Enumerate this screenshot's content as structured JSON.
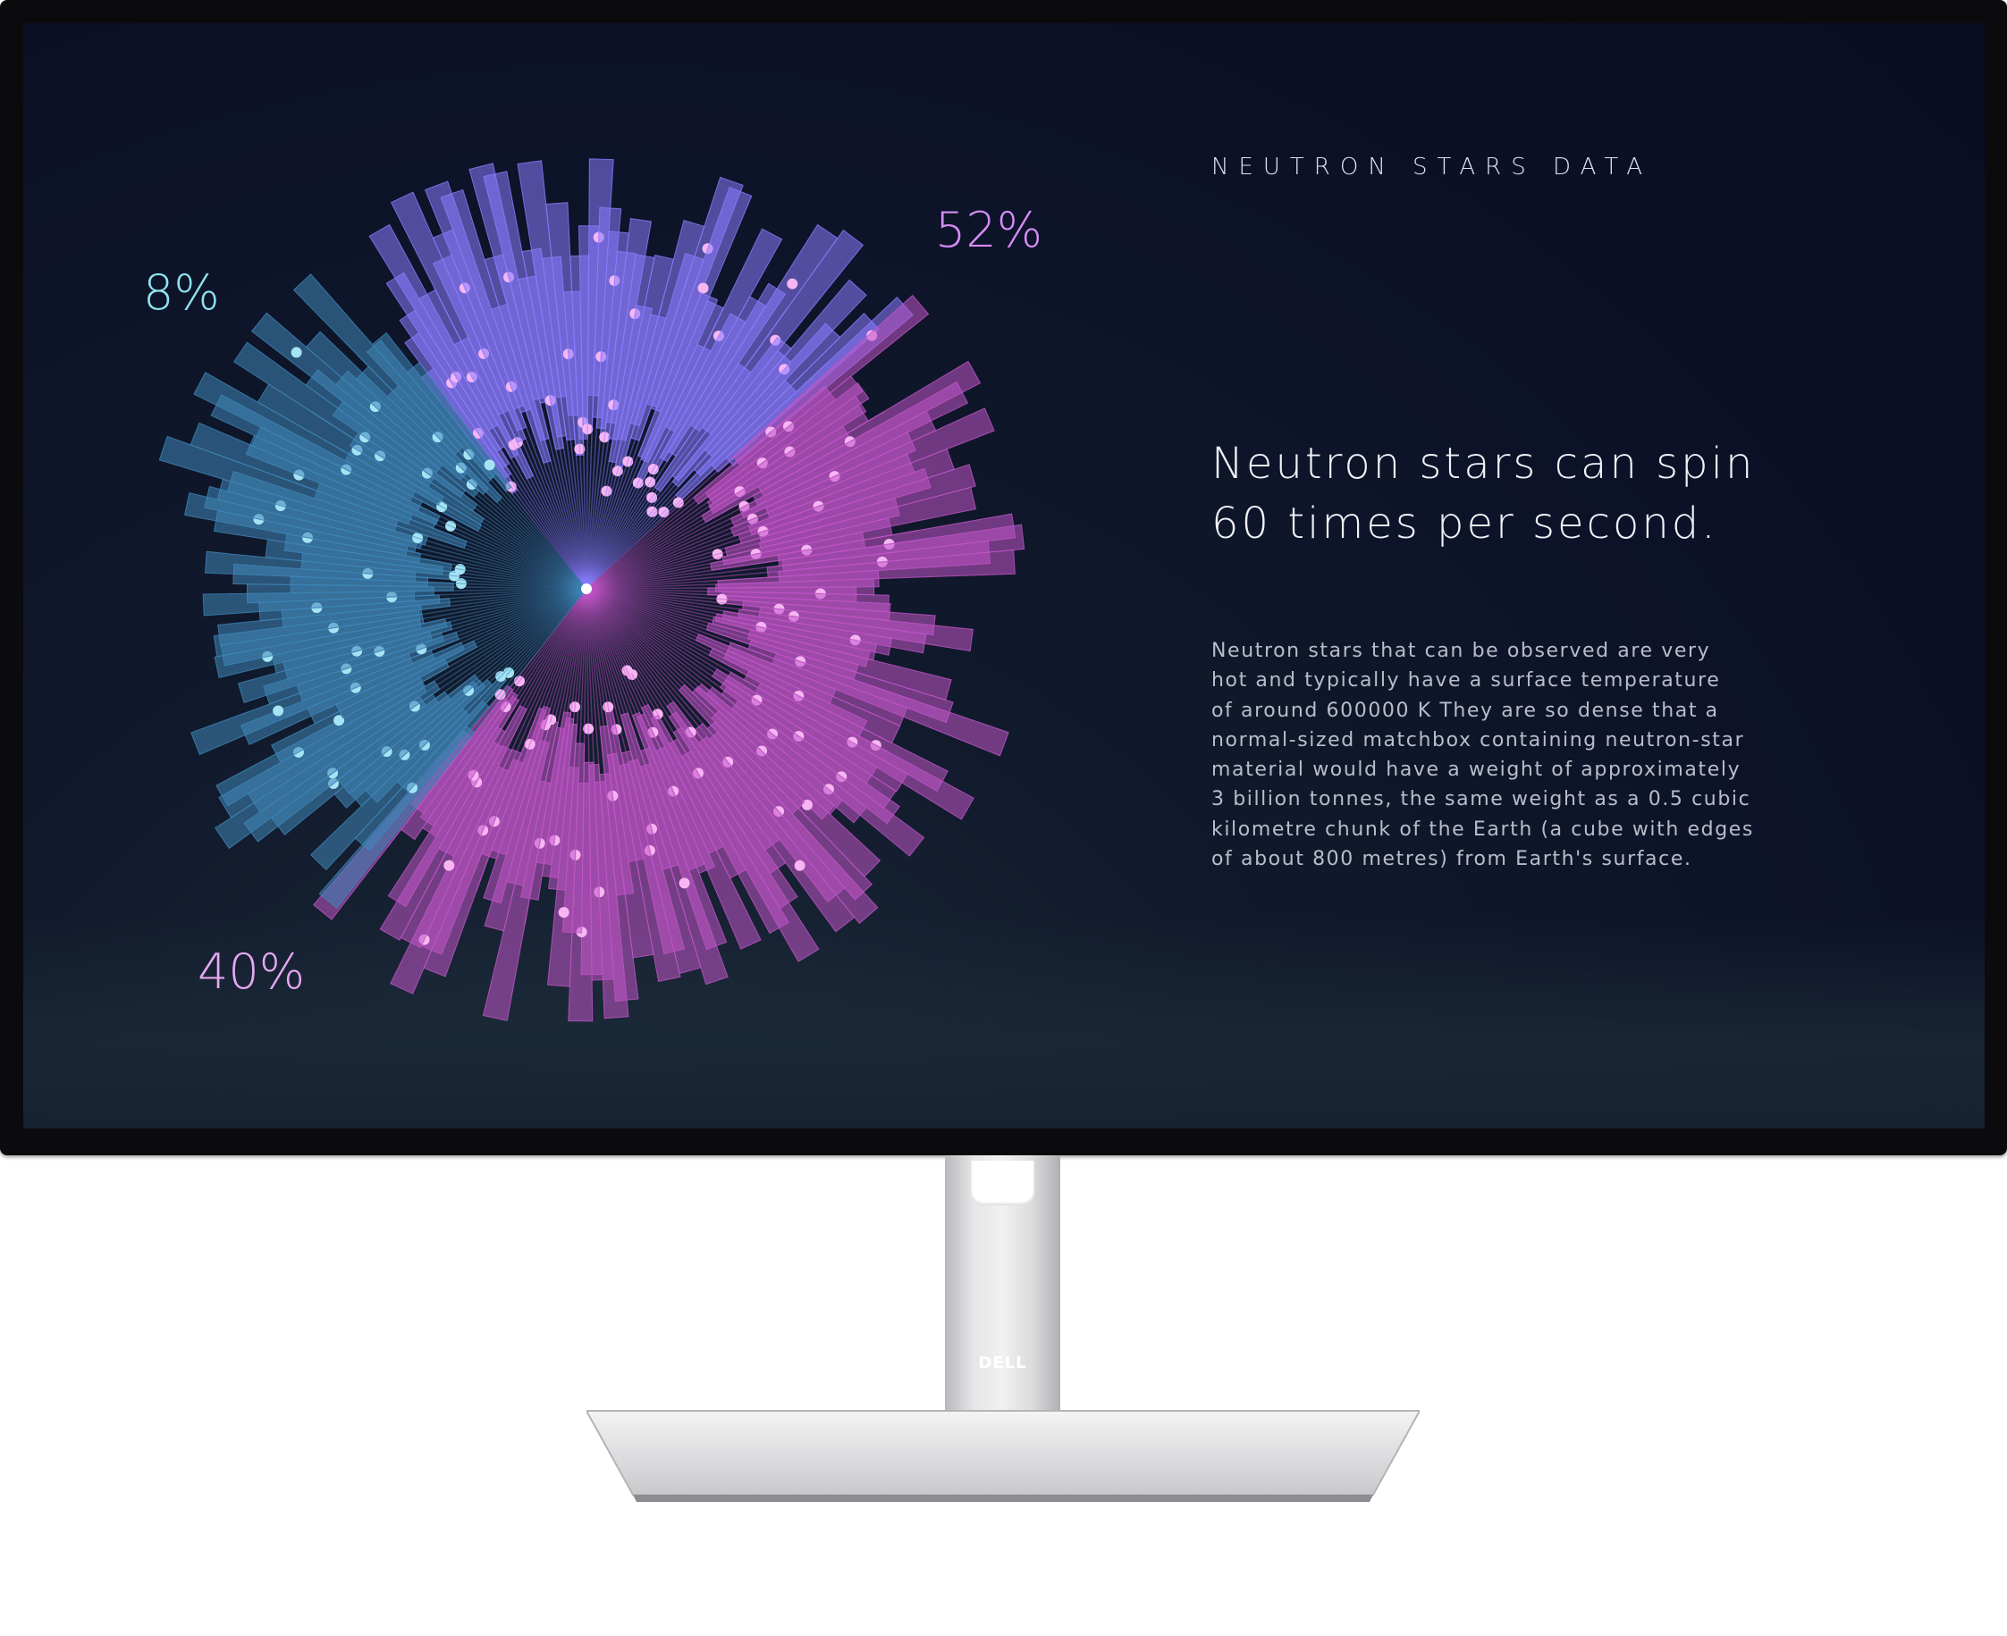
{
  "screen": {
    "kicker": "NEUTRON STARS DATA",
    "headline": [
      "Neutron stars can spin",
      "60 times per second."
    ],
    "paragraph": [
      "Neutron stars that can be observed are very",
      "hot and typically have a surface temperature",
      "of around 600000 K They are so dense that a",
      "normal-sized matchbox containing neutron-star",
      "material would have a weight of approximately",
      "3 billion tonnes, the same weight as a 0.5 cubic",
      "kilometre chunk of the Earth (a cube with edges",
      "of about 800 metres) from Earth's surface."
    ]
  },
  "chart_data": {
    "type": "pie",
    "style": "radial bar burst",
    "labels": [
      "52%",
      "40%",
      "8%"
    ],
    "values": [
      52,
      40,
      8
    ],
    "colors": [
      "#8a7cff",
      "#c155c8",
      "#3f86b8"
    ],
    "title": "",
    "legend": "none"
  },
  "stand": {
    "logo": "DELL"
  }
}
